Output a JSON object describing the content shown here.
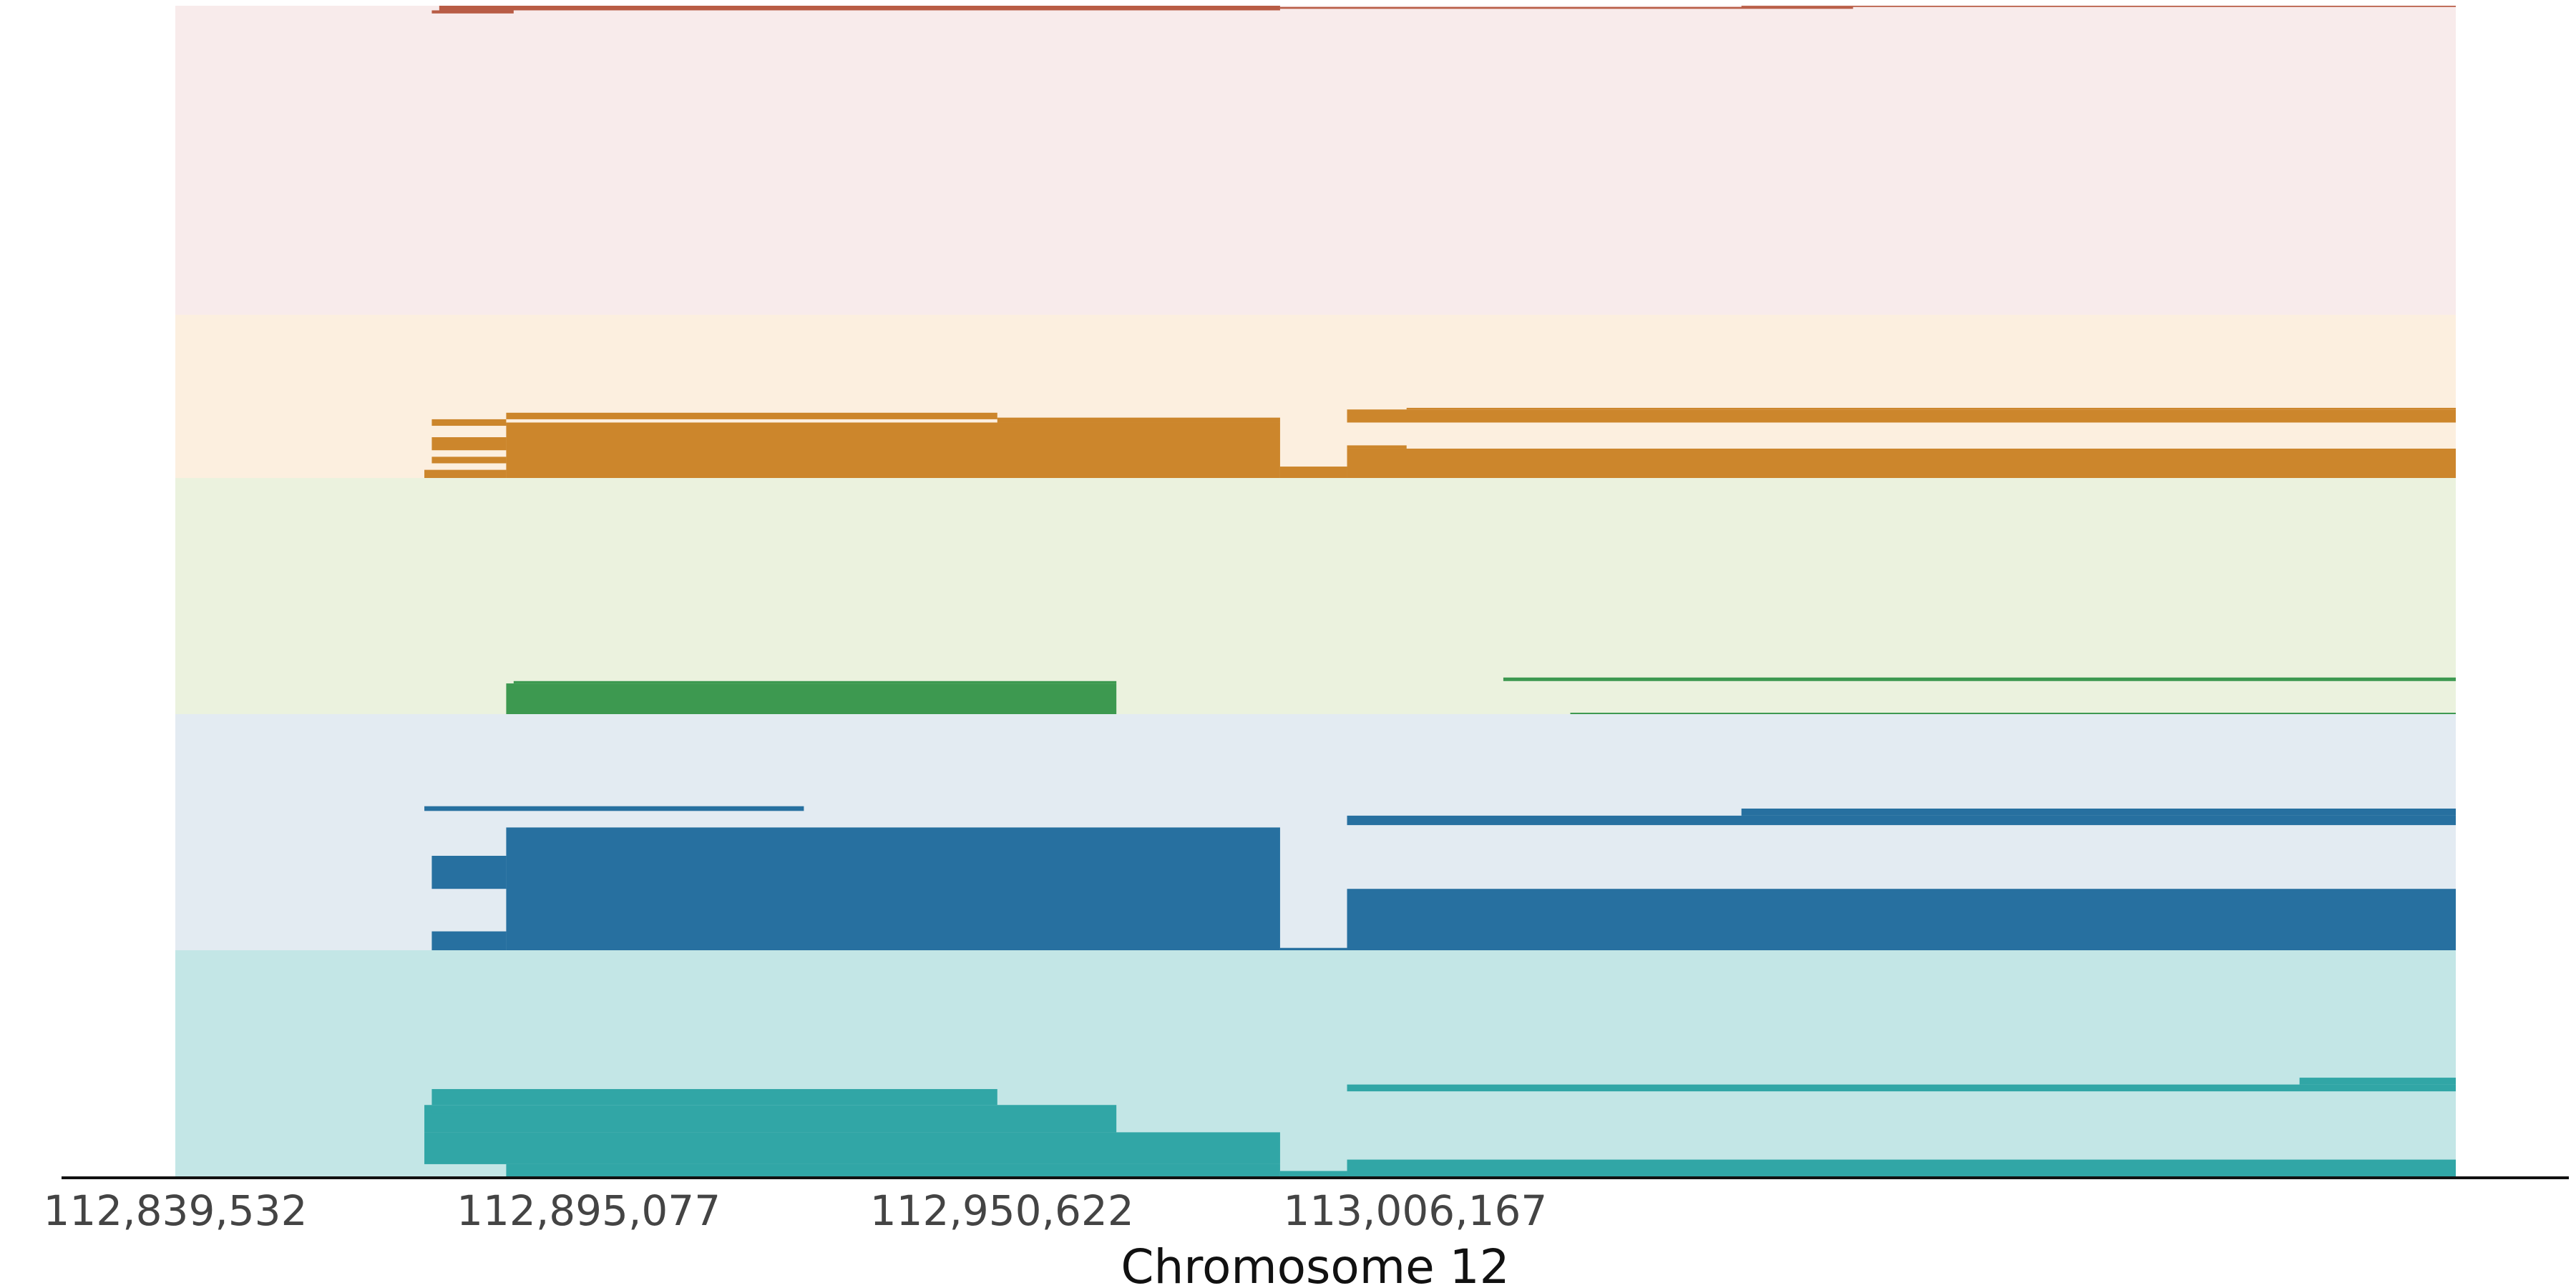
{
  "chart_data": {
    "type": "genome-track",
    "xlabel": "Chromosome 12",
    "xlim": [
      112839532,
      113146000
    ],
    "xticks": [
      {
        "value": 112839532,
        "label": "112,839,532"
      },
      {
        "value": 112895077,
        "label": "112,895,077"
      },
      {
        "value": 112950622,
        "label": "112,950,622"
      },
      {
        "value": 113006167,
        "label": "113,006,167"
      }
    ],
    "tracks": [
      {
        "bg": "#f8ebeb",
        "fg": "#b85c45",
        "reads": [
          {
            "x0": 112875000,
            "x1": 112988000,
            "y0": 0.985,
            "y1": 1.0
          },
          {
            "x0": 112874000,
            "x1": 112885000,
            "y0": 0.975,
            "y1": 0.985
          },
          {
            "x0": 112988000,
            "x1": 113065000,
            "y0": 0.99,
            "y1": 0.996
          },
          {
            "x0": 113050000,
            "x1": 113146000,
            "y0": 0.996,
            "y1": 1.0
          }
        ]
      },
      {
        "bg": "#fcefdf",
        "fg": "#cc862c",
        "reads": [
          {
            "x0": 112884000,
            "x1": 112988000,
            "y0": 0.0,
            "y1": 0.34
          },
          {
            "x0": 112873000,
            "x1": 112884000,
            "y0": 0.0,
            "y1": 0.05
          },
          {
            "x0": 112874000,
            "x1": 112884000,
            "y0": 0.09,
            "y1": 0.13
          },
          {
            "x0": 112874000,
            "x1": 112884000,
            "y0": 0.17,
            "y1": 0.25
          },
          {
            "x0": 112874000,
            "x1": 112884000,
            "y0": 0.32,
            "y1": 0.36
          },
          {
            "x0": 112884000,
            "x1": 112950000,
            "y0": 0.36,
            "y1": 0.4
          },
          {
            "x0": 112950000,
            "x1": 112988000,
            "y0": 0.34,
            "y1": 0.37
          },
          {
            "x0": 112988000,
            "x1": 112997000,
            "y0": 0.0,
            "y1": 0.07
          },
          {
            "x0": 112997000,
            "x1": 113146000,
            "y0": 0.0,
            "y1": 0.18
          },
          {
            "x0": 112997000,
            "x1": 113005000,
            "y0": 0.18,
            "y1": 0.2
          },
          {
            "x0": 112997000,
            "x1": 113146000,
            "y0": 0.34,
            "y1": 0.42
          },
          {
            "x0": 113005000,
            "x1": 113146000,
            "y0": 0.42,
            "y1": 0.43
          }
        ]
      },
      {
        "bg": "#ebf2de",
        "fg": "#3d9950",
        "reads": [
          {
            "x0": 112884000,
            "x1": 112966000,
            "y0": 0.0,
            "y1": 0.13
          },
          {
            "x0": 112885000,
            "x1": 112966000,
            "y0": 0.13,
            "y1": 0.14
          },
          {
            "x0": 113018000,
            "x1": 113146000,
            "y0": 0.14,
            "y1": 0.155
          },
          {
            "x0": 113027000,
            "x1": 113146000,
            "y0": 0.0,
            "y1": 0.006
          }
        ]
      },
      {
        "bg": "#e3ebf2",
        "fg": "#2770a0",
        "reads": [
          {
            "x0": 112884000,
            "x1": 112988000,
            "y0": 0.0,
            "y1": 0.52
          },
          {
            "x0": 112874000,
            "x1": 112884000,
            "y0": 0.0,
            "y1": 0.08
          },
          {
            "x0": 112874000,
            "x1": 112884000,
            "y0": 0.26,
            "y1": 0.4
          },
          {
            "x0": 112873000,
            "x1": 112924000,
            "y0": 0.59,
            "y1": 0.61
          },
          {
            "x0": 112988000,
            "x1": 112997000,
            "y0": 0.0,
            "y1": 0.01
          },
          {
            "x0": 112997000,
            "x1": 113146000,
            "y0": 0.0,
            "y1": 0.26
          },
          {
            "x0": 112997000,
            "x1": 113146000,
            "y0": 0.53,
            "y1": 0.57
          },
          {
            "x0": 113050000,
            "x1": 113146000,
            "y0": 0.57,
            "y1": 0.6
          }
        ]
      },
      {
        "bg": "#c3e6e6",
        "fg": "#31a6a6",
        "reads": [
          {
            "x0": 112884000,
            "x1": 112988000,
            "y0": 0.0,
            "y1": 0.06
          },
          {
            "x0": 112873000,
            "x1": 112988000,
            "y0": 0.06,
            "y1": 0.2
          },
          {
            "x0": 112873000,
            "x1": 112966000,
            "y0": 0.2,
            "y1": 0.32
          },
          {
            "x0": 112874000,
            "x1": 112950000,
            "y0": 0.32,
            "y1": 0.39
          },
          {
            "x0": 112874000,
            "x1": 112884000,
            "y0": 0.28,
            "y1": 0.3
          },
          {
            "x0": 112988000,
            "x1": 112997000,
            "y0": 0.0,
            "y1": 0.03
          },
          {
            "x0": 112997000,
            "x1": 113146000,
            "y0": 0.0,
            "y1": 0.08
          },
          {
            "x0": 112997000,
            "x1": 113146000,
            "y0": 0.38,
            "y1": 0.41
          },
          {
            "x0": 113125000,
            "x1": 113146000,
            "y0": 0.41,
            "y1": 0.44
          }
        ]
      }
    ]
  }
}
